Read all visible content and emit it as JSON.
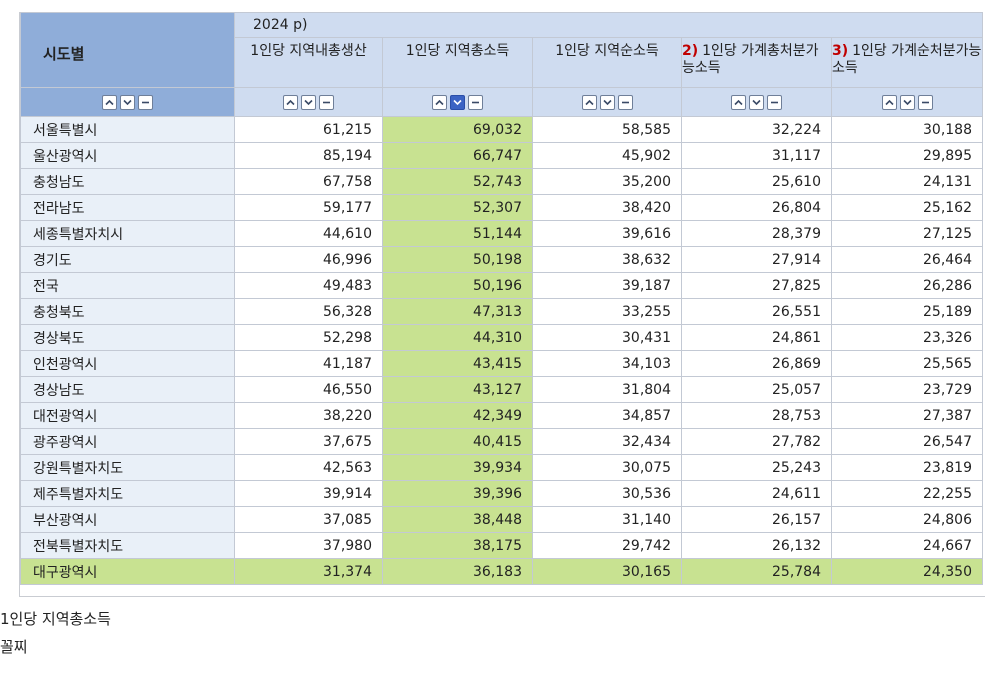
{
  "table": {
    "region_header": "시도별",
    "year_header": "2024 p)",
    "columns": [
      {
        "num": "",
        "label": "1인당 지역내총생산"
      },
      {
        "num": "",
        "label": "1인당 지역총소득"
      },
      {
        "num": "",
        "label": "1인당 지역순소득"
      },
      {
        "num": "2)",
        "label": "1인당 가계총처분가능소득"
      },
      {
        "num": "3)",
        "label": "1인당 가계순처분가능소득"
      }
    ],
    "sort_controls": [
      "sort-ascending-icon",
      "sort-descending-icon",
      "collapse-icon"
    ],
    "active_sort_column": 1,
    "rows": [
      {
        "region": "서울특별시",
        "values": [
          "61,215",
          "69,032",
          "58,585",
          "32,224",
          "30,188"
        ]
      },
      {
        "region": "울산광역시",
        "values": [
          "85,194",
          "66,747",
          "45,902",
          "31,117",
          "29,895"
        ]
      },
      {
        "region": "충청남도",
        "values": [
          "67,758",
          "52,743",
          "35,200",
          "25,610",
          "24,131"
        ]
      },
      {
        "region": "전라남도",
        "values": [
          "59,177",
          "52,307",
          "38,420",
          "26,804",
          "25,162"
        ]
      },
      {
        "region": "세종특별자치시",
        "values": [
          "44,610",
          "51,144",
          "39,616",
          "28,379",
          "27,125"
        ]
      },
      {
        "region": "경기도",
        "values": [
          "46,996",
          "50,198",
          "38,632",
          "27,914",
          "26,464"
        ]
      },
      {
        "region": "전국",
        "values": [
          "49,483",
          "50,196",
          "39,187",
          "27,825",
          "26,286"
        ]
      },
      {
        "region": "충청북도",
        "values": [
          "56,328",
          "47,313",
          "33,255",
          "26,551",
          "25,189"
        ]
      },
      {
        "region": "경상북도",
        "values": [
          "52,298",
          "44,310",
          "30,431",
          "24,861",
          "23,326"
        ]
      },
      {
        "region": "인천광역시",
        "values": [
          "41,187",
          "43,415",
          "34,103",
          "26,869",
          "25,565"
        ]
      },
      {
        "region": "경상남도",
        "values": [
          "46,550",
          "43,127",
          "31,804",
          "25,057",
          "23,729"
        ]
      },
      {
        "region": "대전광역시",
        "values": [
          "38,220",
          "42,349",
          "34,857",
          "28,753",
          "27,387"
        ]
      },
      {
        "region": "광주광역시",
        "values": [
          "37,675",
          "40,415",
          "32,434",
          "27,782",
          "26,547"
        ]
      },
      {
        "region": "강원특별자치도",
        "values": [
          "42,563",
          "39,934",
          "30,075",
          "25,243",
          "23,819"
        ]
      },
      {
        "region": "제주특별자치도",
        "values": [
          "39,914",
          "39,396",
          "30,536",
          "24,611",
          "22,255"
        ]
      },
      {
        "region": "부산광역시",
        "values": [
          "37,085",
          "38,448",
          "31,140",
          "26,157",
          "24,806"
        ]
      },
      {
        "region": "전북특별자치도",
        "values": [
          "37,980",
          "38,175",
          "29,742",
          "26,132",
          "24,667"
        ]
      },
      {
        "region": "대구광역시",
        "values": [
          "31,374",
          "36,183",
          "30,165",
          "25,784",
          "24,350"
        ]
      }
    ],
    "highlighted_row": 17,
    "highlight_color": "#c8e291",
    "header_color": "#cfdcf0",
    "region_header_color": "#8fadd9",
    "active_button_color": "#3b63c4"
  },
  "captions": [
    "1인당 지역총소득",
    "꼴찌"
  ]
}
